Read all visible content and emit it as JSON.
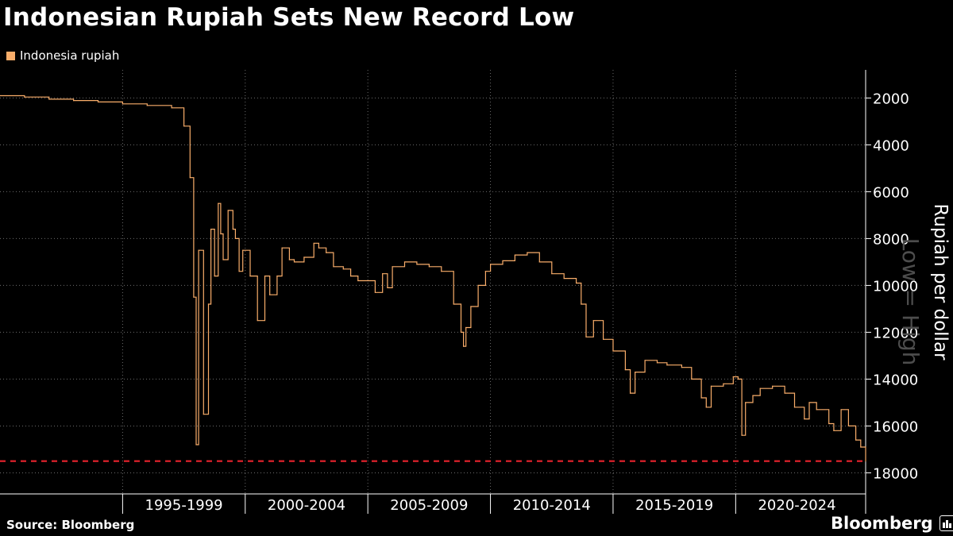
{
  "header": {
    "title": "Indonesian Rupiah Sets New Record Low",
    "legend_label": "Indonesia rupiah",
    "legend_color": "#f9ad6a"
  },
  "footer": {
    "source": "Source: Bloomberg",
    "brand": "Bloomberg"
  },
  "chart_data": {
    "type": "line",
    "title": "Indonesian Rupiah Sets New Record Low",
    "ylabel": "Rupiah per dollar",
    "y_inverted": true,
    "y_watermark": "Low = High",
    "ylim": [
      800,
      18900
    ],
    "xlim": [
      1990,
      2025.3
    ],
    "y_ticks": [
      2000,
      4000,
      6000,
      8000,
      10000,
      12000,
      14000,
      16000,
      18000
    ],
    "x_tick_labels": [
      "1995-1999",
      "2000-2004",
      "2005-2009",
      "2010-2014",
      "2015-2019",
      "2020-2024"
    ],
    "x_tick_positions": [
      1995,
      2000,
      2005,
      2010,
      2015,
      2020
    ],
    "x_label_centers": [
      1997.5,
      2002.5,
      2007.5,
      2012.5,
      2017.5,
      2022.5
    ],
    "grid": true,
    "legend_position": "top-left",
    "series": [
      {
        "name": "Indonesia rupiah",
        "color": "#f9ad6a",
        "x": [
          1990.0,
          1991.0,
          1992.0,
          1993.0,
          1994.0,
          1995.0,
          1996.0,
          1997.0,
          1997.5,
          1997.75,
          1997.9,
          1998.0,
          1998.1,
          1998.3,
          1998.5,
          1998.6,
          1998.75,
          1998.9,
          1999.0,
          1999.1,
          1999.3,
          1999.5,
          1999.6,
          1999.75,
          1999.9,
          2000.2,
          2000.5,
          2000.8,
          2001.0,
          2001.3,
          2001.5,
          2001.8,
          2002.0,
          2002.4,
          2002.8,
          2003.0,
          2003.3,
          2003.6,
          2004.0,
          2004.3,
          2004.6,
          2005.0,
          2005.3,
          2005.6,
          2005.8,
          2006.0,
          2006.5,
          2007.0,
          2007.5,
          2008.0,
          2008.5,
          2008.8,
          2008.9,
          2009.0,
          2009.2,
          2009.5,
          2009.8,
          2010.0,
          2010.5,
          2011.0,
          2011.5,
          2012.0,
          2012.5,
          2013.0,
          2013.5,
          2013.7,
          2013.9,
          2014.2,
          2014.6,
          2015.0,
          2015.5,
          2015.7,
          2015.9,
          2016.3,
          2016.8,
          2017.2,
          2017.8,
          2018.2,
          2018.6,
          2018.8,
          2019.0,
          2019.5,
          2019.9,
          2020.1,
          2020.25,
          2020.4,
          2020.7,
          2021.0,
          2021.5,
          2022.0,
          2022.4,
          2022.8,
          2023.0,
          2023.3,
          2023.8,
          2024.0,
          2024.3,
          2024.6,
          2024.9,
          2025.1,
          2025.3
        ],
        "y": [
          1900,
          1960,
          2050,
          2110,
          2170,
          2250,
          2320,
          2420,
          3200,
          5400,
          10500,
          16800,
          8500,
          15500,
          10800,
          7600,
          9600,
          6500,
          7800,
          8900,
          6800,
          7600,
          8000,
          9400,
          8500,
          9600,
          11500,
          9600,
          10400,
          9600,
          8400,
          8900,
          9000,
          8800,
          8200,
          8400,
          8600,
          9200,
          9300,
          9600,
          9800,
          9800,
          10300,
          9500,
          10100,
          9200,
          9000,
          9100,
          9200,
          9400,
          10800,
          12000,
          12600,
          11800,
          10900,
          10000,
          9400,
          9100,
          8950,
          8700,
          8600,
          9000,
          9500,
          9700,
          9900,
          10800,
          12200,
          11500,
          12300,
          12800,
          13600,
          14600,
          13700,
          13200,
          13300,
          13400,
          13500,
          14000,
          14800,
          15200,
          14300,
          14200,
          13900,
          14000,
          16400,
          15000,
          14700,
          14400,
          14300,
          14600,
          15200,
          15700,
          15000,
          15300,
          15900,
          16200,
          15300,
          16000,
          16600,
          16900,
          17500
        ]
      }
    ],
    "annotations": [
      {
        "type": "hline",
        "y": 17500,
        "style": "dashed",
        "color": "#e8232d"
      }
    ]
  }
}
